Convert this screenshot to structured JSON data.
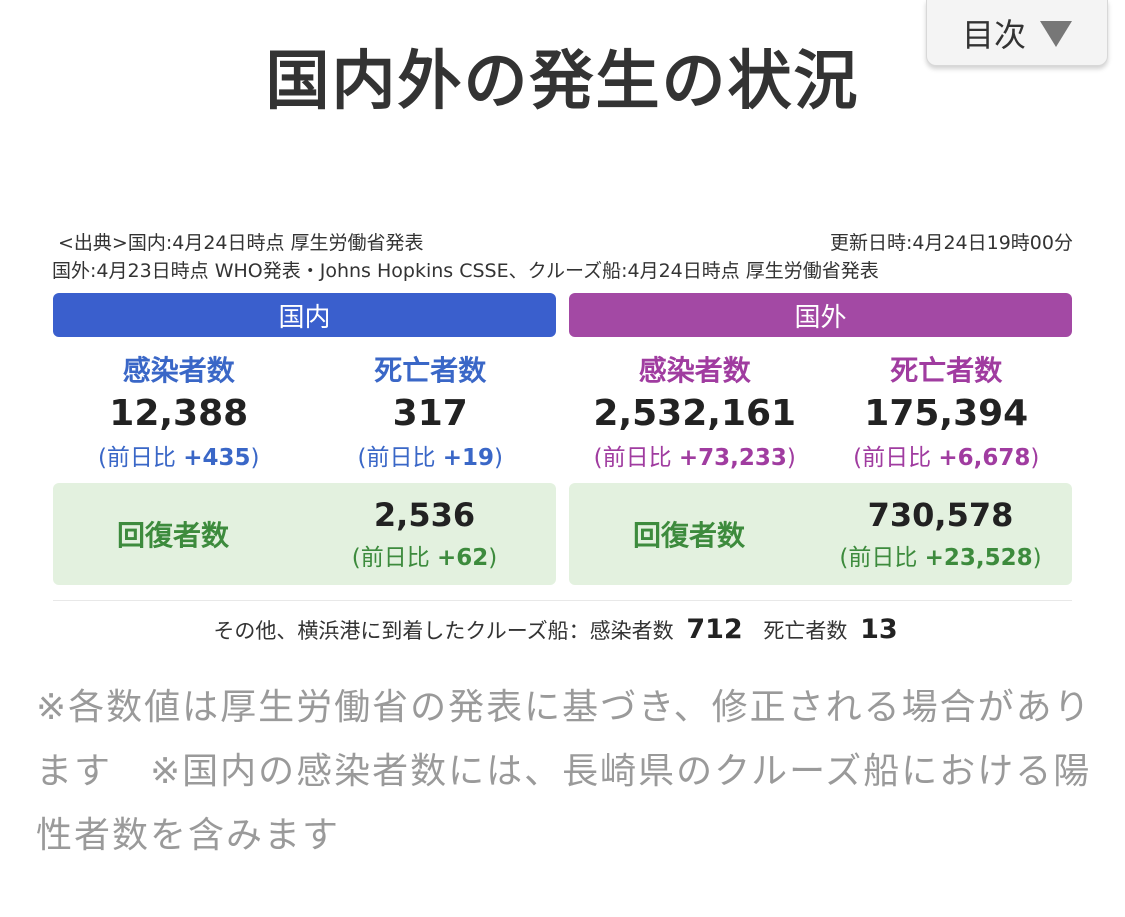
{
  "toc": {
    "label": "目次"
  },
  "title": "国内外の発生の状況",
  "source": {
    "line1": "<出典>国内:4月24日時点 厚生労働省発表",
    "line2": "国外:4月23日時点 WHO発表・Johns Hopkins CSSE、クルーズ船:4月24日時点 厚生労働省発表",
    "updated": "更新日時:4月24日19時00分"
  },
  "domestic": {
    "header": "国内",
    "infected": {
      "label": "感染者数",
      "value": "12,388",
      "diff_prefix": "(前日比 ",
      "diff": "+435",
      "diff_suffix": ")"
    },
    "deaths": {
      "label": "死亡者数",
      "value": "317",
      "diff_prefix": "(前日比 ",
      "diff": "+19",
      "diff_suffix": ")"
    },
    "recovered": {
      "label": "回復者数",
      "value": "2,536",
      "diff_prefix": "(前日比 ",
      "diff": "+62",
      "diff_suffix": ")"
    }
  },
  "overseas": {
    "header": "国外",
    "infected": {
      "label": "感染者数",
      "value": "2,532,161",
      "diff_prefix": "(前日比 ",
      "diff": "+73,233",
      "diff_suffix": ")"
    },
    "deaths": {
      "label": "死亡者数",
      "value": "175,394",
      "diff_prefix": "(前日比 ",
      "diff": "+6,678",
      "diff_suffix": ")"
    },
    "recovered": {
      "label": "回復者数",
      "value": "730,578",
      "diff_prefix": "(前日比 ",
      "diff": "+23,528",
      "diff_suffix": ")"
    }
  },
  "cruise": {
    "prefix": "その他、横浜港に到着したクルーズ船：感染者数",
    "infected": "712",
    "deaths_label": "死亡者数",
    "deaths": "13"
  },
  "notes": "※各数値は厚生労働省の発表に基づき、修正される場合があります　※国内の感染者数には、長崎県のクルーズ船における陽性者数を含みます",
  "colors": {
    "domestic": "#3a5fcd",
    "overseas": "#a349a4",
    "recovery_bg": "#e3f1df",
    "recovery_text": "#3d8b3d"
  }
}
